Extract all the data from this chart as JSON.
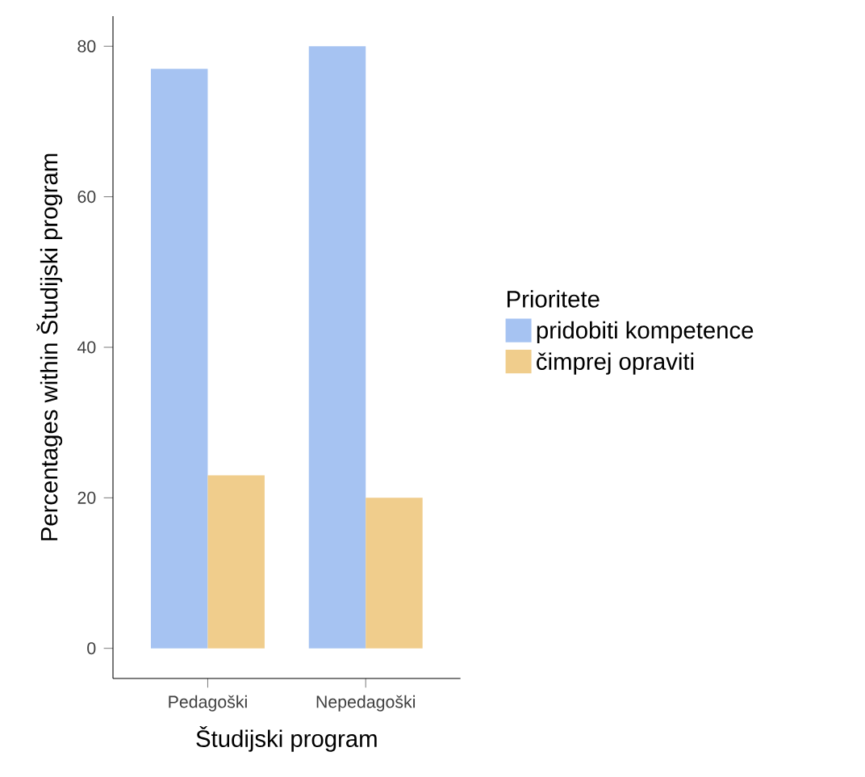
{
  "chart_data": {
    "type": "bar",
    "xlabel": "Študijski program",
    "ylabel": "Percentages within Študijski program",
    "legend_title": "Prioritete",
    "categories": [
      "Pedagoški",
      "Nepedagoški"
    ],
    "series": [
      {
        "name": "pridobiti kompetence",
        "color": "#a6c3f2",
        "values": [
          77,
          80
        ]
      },
      {
        "name": "čimprej opraviti",
        "color": "#f0cd8c",
        "values": [
          23,
          20
        ]
      }
    ],
    "ylim": [
      -4,
      84
    ],
    "yticks": [
      0,
      20,
      40,
      60,
      80
    ],
    "grid": false,
    "legend": "right"
  }
}
